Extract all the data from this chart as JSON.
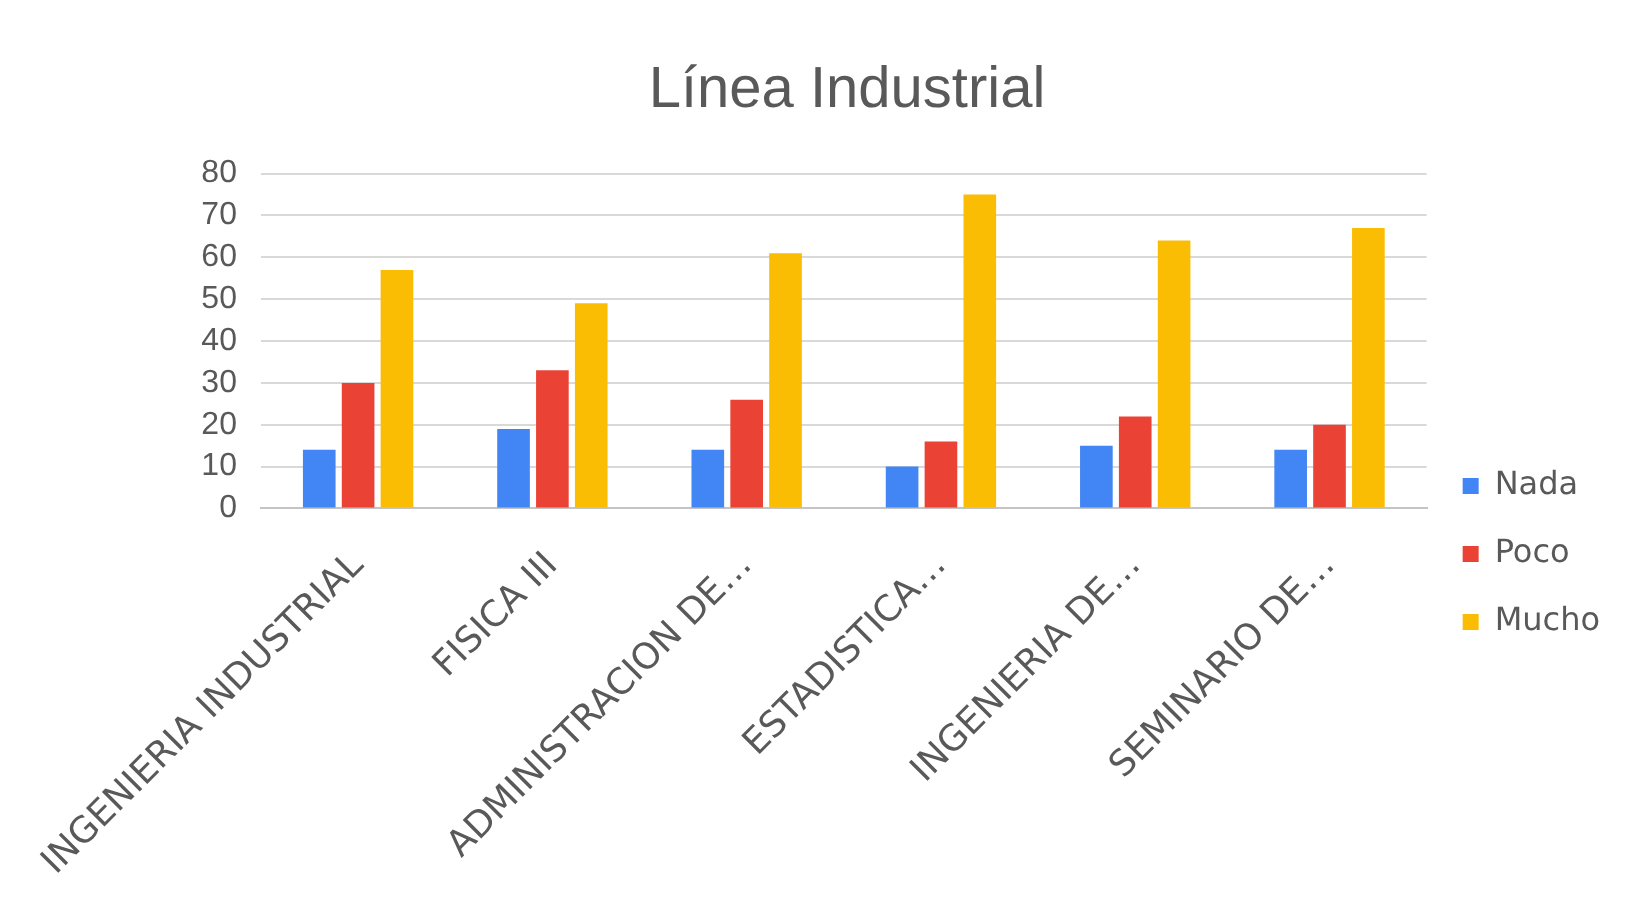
{
  "chart_data": {
    "type": "bar",
    "title": "Línea Industrial",
    "categories": [
      "INGENIERIA INDUSTRIAL",
      "FISICA III",
      "ADMINISTRACION DE…",
      "ESTADISTICA…",
      "INGENIERIA DE…",
      "SEMINARIO DE…"
    ],
    "series": [
      {
        "name": "Nada",
        "color": "#4285f4",
        "values": [
          14,
          19,
          14,
          10,
          15,
          14
        ]
      },
      {
        "name": "Poco",
        "color": "#ea4335",
        "values": [
          30,
          33,
          26,
          16,
          22,
          20
        ]
      },
      {
        "name": "Mucho",
        "color": "#fbbc04",
        "values": [
          57,
          49,
          61,
          75,
          64,
          67
        ]
      }
    ],
    "ylim": [
      0,
      80
    ],
    "yticks": [
      0,
      10,
      20,
      30,
      40,
      50,
      60,
      70,
      80
    ],
    "grid": "y",
    "legend": "right"
  }
}
